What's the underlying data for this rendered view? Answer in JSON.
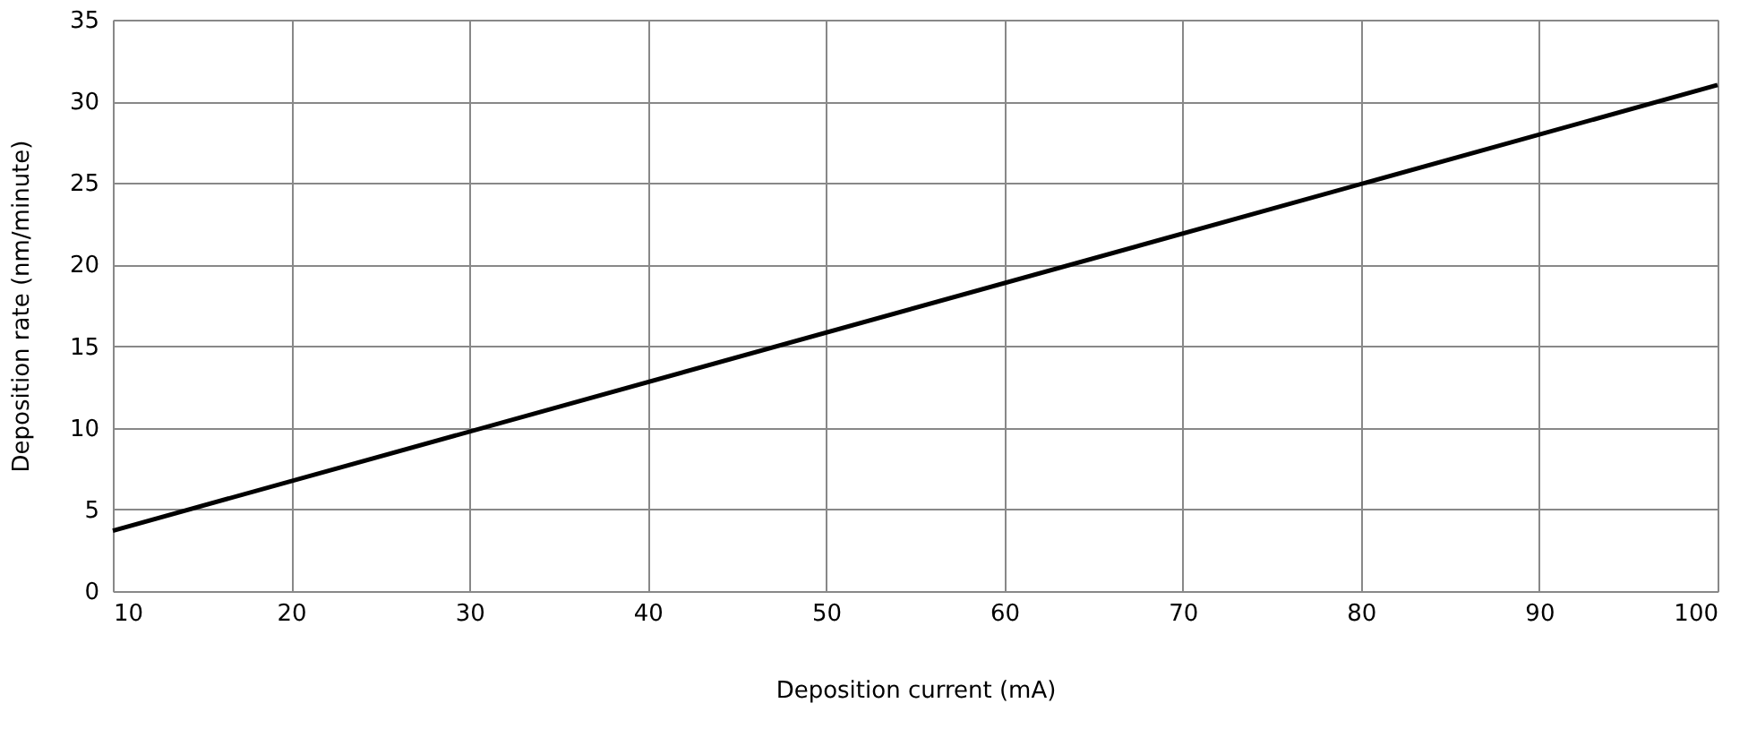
{
  "chart_data": {
    "type": "line",
    "xlabel": "Deposition current (mA)",
    "ylabel": "Deposition rate (nm/minute)",
    "x": [
      10,
      100
    ],
    "series": [
      {
        "color": "#000000",
        "values": [
          3.7,
          31
        ]
      }
    ],
    "xlim": [
      10,
      100
    ],
    "xticks": [
      10,
      20,
      30,
      40,
      50,
      60,
      70,
      80,
      90,
      100
    ],
    "ylim": [
      0,
      35
    ],
    "yticks": [
      0,
      5,
      10,
      15,
      20,
      25,
      30,
      35
    ],
    "grid": true,
    "marker": "none",
    "line_style": "solid"
  }
}
